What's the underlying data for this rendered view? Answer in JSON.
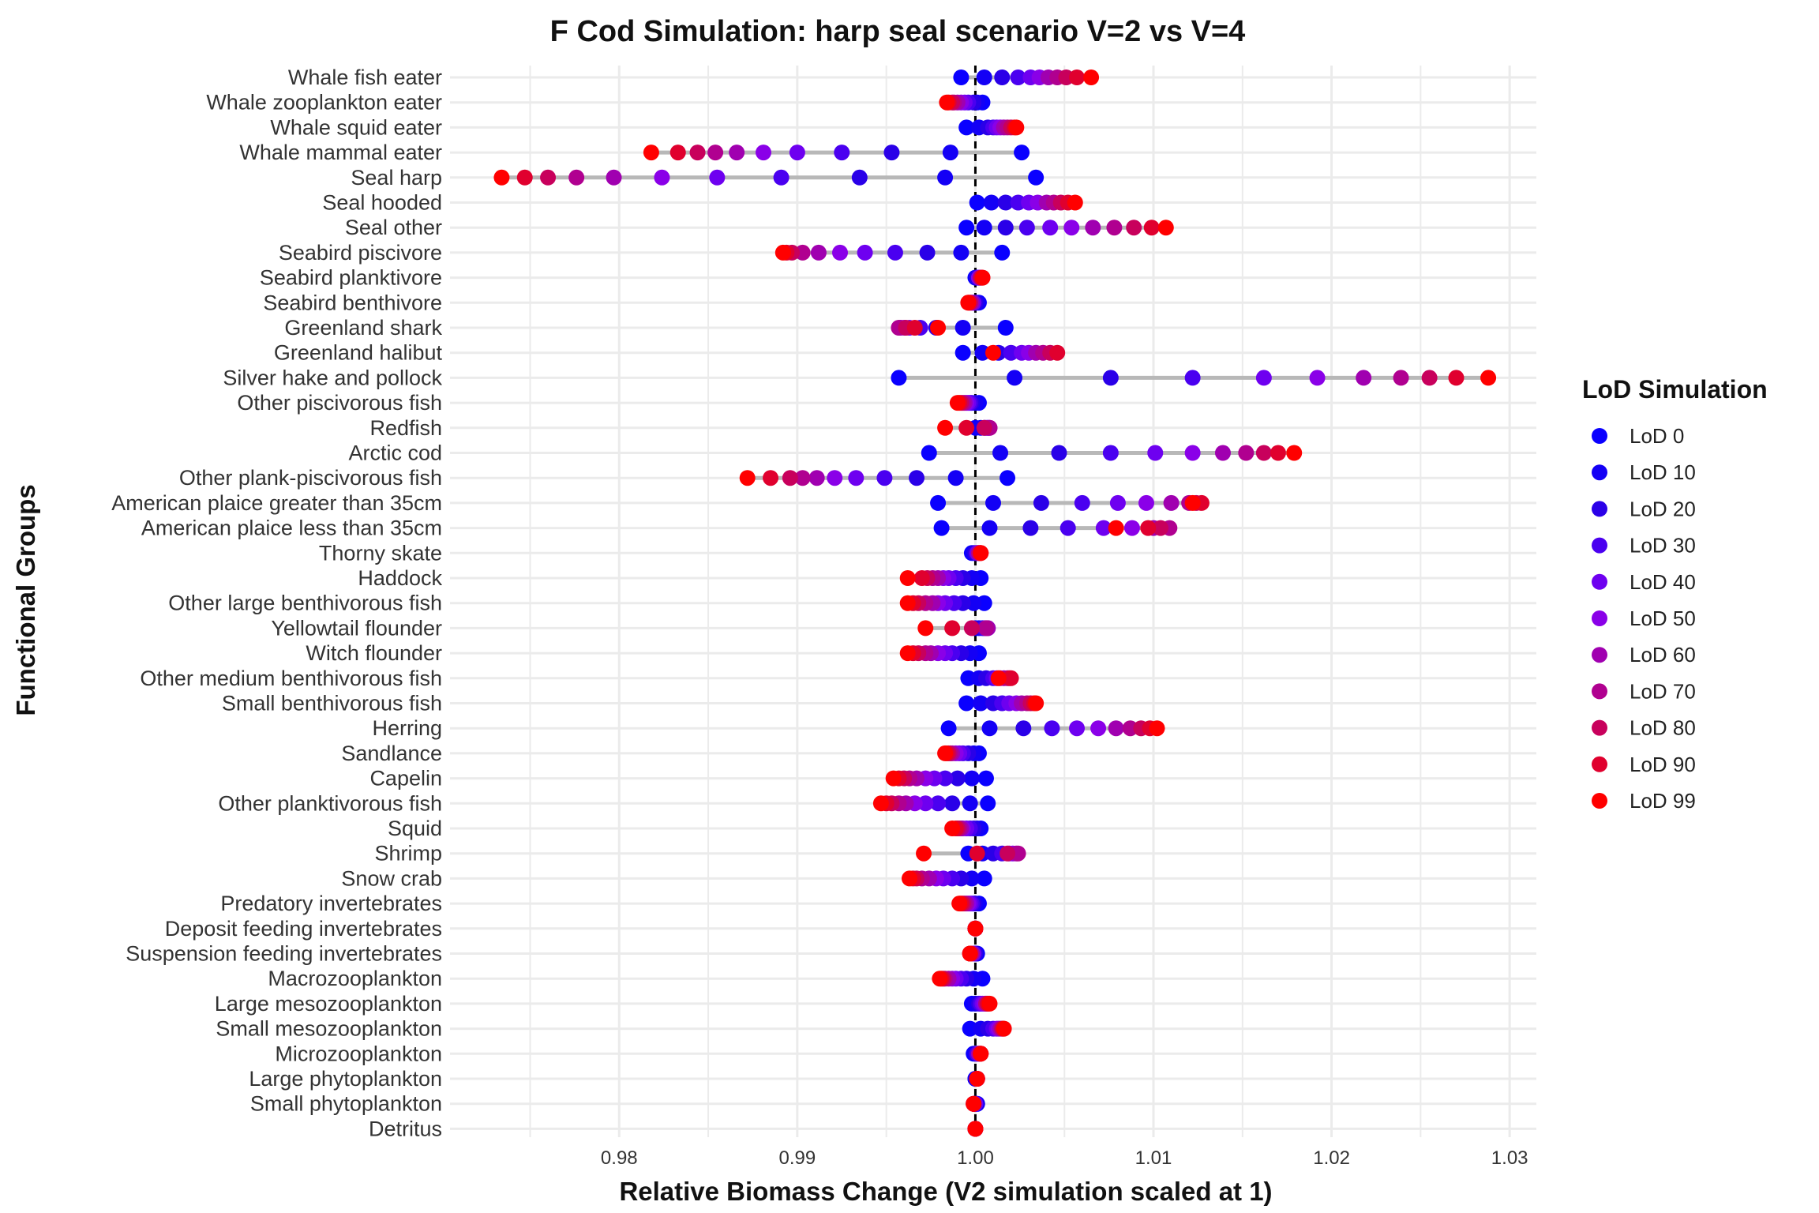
{
  "chart_data": {
    "type": "scatter",
    "title": "F Cod Simulation: harp seal scenario V=2 vs V=4",
    "xlabel": "Relative Biomass Change (V2 simulation scaled at 1)",
    "ylabel": "Functional Groups",
    "xlim": [
      0.9705,
      1.0315
    ],
    "x_ticks": [
      0.98,
      0.99,
      1.0,
      1.01,
      1.02,
      1.03
    ],
    "x_tick_labels": [
      "0.98",
      "0.99",
      "1.00",
      "1.01",
      "1.02",
      "1.03"
    ],
    "reference_line": 1.0,
    "grid": true,
    "legend_position": "right",
    "legend_title": "LoD Simulation",
    "series_names": [
      "LoD 0",
      "LoD 10",
      "LoD 20",
      "LoD 30",
      "LoD 40",
      "LoD 50",
      "LoD 60",
      "LoD 70",
      "LoD 80",
      "LoD 90",
      "LoD 99"
    ],
    "series_colors": [
      "#0a00ff",
      "#1400f5",
      "#2a00e8",
      "#4a00f0",
      "#6e00f0",
      "#8a00e8",
      "#a000b0",
      "#b00090",
      "#c8005c",
      "#e0002e",
      "#ff0000"
    ],
    "groups": [
      {
        "name": "Whale fish eater",
        "values": [
          0.9992,
          1.0005,
          1.0015,
          1.0024,
          1.0031,
          1.0036,
          1.0041,
          1.0046,
          1.0051,
          1.0057,
          1.0065
        ]
      },
      {
        "name": "Whale zooplankton eater",
        "values": [
          1.0004,
          1.0001,
          0.9999,
          0.9996,
          0.9994,
          0.9992,
          0.999,
          0.9988,
          0.9987,
          0.9985,
          0.9984
        ]
      },
      {
        "name": "Whale squid eater",
        "values": [
          0.9995,
          1.0002,
          1.0007,
          1.001,
          1.0012,
          1.0014,
          1.0016,
          1.0018,
          1.002,
          1.0022,
          1.0023
        ]
      },
      {
        "name": "Whale mammal eater",
        "values": [
          1.0026,
          0.9986,
          0.9953,
          0.9925,
          0.99,
          0.9881,
          0.9866,
          0.9854,
          0.9844,
          0.9833,
          0.9818
        ]
      },
      {
        "name": "Seal harp",
        "values": [
          1.0034,
          0.9983,
          0.9935,
          0.9891,
          0.9855,
          0.9824,
          0.9797,
          0.9776,
          0.976,
          0.9747,
          0.9734
        ]
      },
      {
        "name": "Seal hooded",
        "values": [
          1.0001,
          1.0009,
          1.0017,
          1.0024,
          1.003,
          1.0035,
          1.004,
          1.0044,
          1.0048,
          1.0052,
          1.0056
        ]
      },
      {
        "name": "Seal other",
        "values": [
          0.9995,
          1.0005,
          1.0017,
          1.0029,
          1.0042,
          1.0054,
          1.0066,
          1.0078,
          1.0089,
          1.0099,
          1.0107
        ]
      },
      {
        "name": "Seabird piscivore",
        "values": [
          1.0015,
          0.9992,
          0.9973,
          0.9955,
          0.9938,
          0.9924,
          0.9912,
          0.9903,
          0.9897,
          0.9894,
          0.9892
        ]
      },
      {
        "name": "Seabird planktivore",
        "values": [
          1.0,
          1.0001,
          1.0001,
          1.0002,
          1.0002,
          1.0002,
          1.0003,
          1.0003,
          1.0003,
          1.0004,
          1.0004
        ]
      },
      {
        "name": "Seabird benthivore",
        "values": [
          1.0002,
          1.0001,
          1.0,
          0.9999,
          0.9999,
          0.9998,
          0.9998,
          0.9997,
          0.9997,
          0.9996,
          0.9996
        ]
      },
      {
        "name": "Greenland shark",
        "values": [
          1.0017,
          0.9993,
          0.9978,
          0.9969,
          0.9963,
          0.996,
          0.9958,
          0.9957,
          0.9961,
          0.9966,
          0.9979
        ]
      },
      {
        "name": "Greenland halibut",
        "values": [
          0.9993,
          1.0004,
          1.0013,
          1.002,
          1.0026,
          1.003,
          1.0034,
          1.0038,
          1.0042,
          1.0046,
          1.001
        ]
      },
      {
        "name": "Silver hake and pollock",
        "values": [
          0.9957,
          1.0022,
          1.0076,
          1.0122,
          1.0162,
          1.0192,
          1.0218,
          1.0239,
          1.0255,
          1.027,
          1.0288
        ]
      },
      {
        "name": "Other piscivorous fish",
        "values": [
          1.0002,
          1.0,
          0.9998,
          0.9997,
          0.9996,
          0.9995,
          0.9994,
          0.9993,
          0.9992,
          0.9991,
          0.999
        ]
      },
      {
        "name": "Redfish",
        "values": [
          1.0,
          1.0003,
          1.0005,
          1.0006,
          1.0007,
          1.0007,
          1.0008,
          1.0008,
          1.0005,
          0.9995,
          0.9983
        ]
      },
      {
        "name": "Arctic cod",
        "values": [
          0.9974,
          1.0014,
          1.0047,
          1.0076,
          1.0101,
          1.0122,
          1.0139,
          1.0152,
          1.0162,
          1.017,
          1.0179
        ]
      },
      {
        "name": "Other plank-piscivorous fish",
        "values": [
          1.0018,
          0.9989,
          0.9967,
          0.9949,
          0.9933,
          0.9921,
          0.9911,
          0.9903,
          0.9896,
          0.9885,
          0.9872
        ]
      },
      {
        "name": "American plaice greater than 35cm",
        "values": [
          0.9979,
          1.001,
          1.0037,
          1.006,
          1.008,
          1.0096,
          1.011,
          1.012,
          1.0124,
          1.0127,
          1.0122
        ]
      },
      {
        "name": "American plaice less than 35cm",
        "values": [
          0.9981,
          1.0008,
          1.0031,
          1.0052,
          1.0072,
          1.0088,
          1.01,
          1.0109,
          1.0104,
          1.0097,
          1.0079
        ]
      },
      {
        "name": "Thorny skate",
        "values": [
          0.9998,
          0.9999,
          1.0,
          1.0001,
          1.0001,
          1.0002,
          1.0002,
          1.0002,
          1.0003,
          1.0003,
          1.0003
        ]
      },
      {
        "name": "Haddock",
        "values": [
          1.0003,
          0.9998,
          0.9993,
          0.9989,
          0.9985,
          0.9982,
          0.9979,
          0.9976,
          0.9973,
          0.997,
          0.9962
        ]
      },
      {
        "name": "Other large benthivorous fish",
        "values": [
          1.0005,
          0.9999,
          0.9993,
          0.9988,
          0.9983,
          0.9979,
          0.9976,
          0.9972,
          0.9968,
          0.9965,
          0.9962
        ]
      },
      {
        "name": "Yellowtail flounder",
        "values": [
          1.0,
          1.0002,
          1.0004,
          1.0005,
          1.0006,
          1.0007,
          1.0007,
          1.0006,
          0.9998,
          0.9987,
          0.9972
        ]
      },
      {
        "name": "Witch flounder",
        "values": [
          1.0002,
          0.9997,
          0.9992,
          0.9987,
          0.9983,
          0.9979,
          0.9975,
          0.9972,
          0.9968,
          0.9965,
          0.9962
        ]
      },
      {
        "name": "Other medium benthivorous fish",
        "values": [
          0.9996,
          1.0002,
          1.0006,
          1.001,
          1.0012,
          1.0014,
          1.0016,
          1.0018,
          1.0019,
          1.002,
          1.0013
        ]
      },
      {
        "name": "Small benthivorous fish",
        "values": [
          0.9995,
          1.0003,
          1.001,
          1.0015,
          1.0019,
          1.0023,
          1.0026,
          1.0029,
          1.0031,
          1.0033,
          1.0034
        ]
      },
      {
        "name": "Herring",
        "values": [
          0.9985,
          1.0008,
          1.0027,
          1.0043,
          1.0057,
          1.0069,
          1.0079,
          1.0087,
          1.0093,
          1.0098,
          1.0102
        ]
      },
      {
        "name": "Sandlance",
        "values": [
          1.0002,
          0.9999,
          0.9996,
          0.9993,
          0.9991,
          0.9989,
          0.9987,
          0.9986,
          0.9985,
          0.9984,
          0.9983
        ]
      },
      {
        "name": "Capelin",
        "values": [
          1.0006,
          0.9998,
          0.999,
          0.9983,
          0.9977,
          0.9972,
          0.9967,
          0.9963,
          0.996,
          0.9957,
          0.9954
        ]
      },
      {
        "name": "Other planktivorous fish",
        "values": [
          1.0007,
          0.9997,
          0.9987,
          0.9979,
          0.9972,
          0.9966,
          0.9961,
          0.9957,
          0.9953,
          0.995,
          0.9947
        ]
      },
      {
        "name": "Squid",
        "values": [
          1.0003,
          1.0001,
          0.9999,
          0.9997,
          0.9995,
          0.9993,
          0.9992,
          0.9991,
          0.999,
          0.9989,
          0.9987
        ]
      },
      {
        "name": "Shrimp",
        "values": [
          0.9996,
          1.0004,
          1.001,
          1.0015,
          1.0019,
          1.0021,
          1.0023,
          1.0024,
          1.0018,
          1.0001,
          0.9971
        ]
      },
      {
        "name": "Snow crab",
        "values": [
          1.0005,
          0.9998,
          0.9992,
          0.9987,
          0.9982,
          0.9978,
          0.9974,
          0.997,
          0.9967,
          0.9965,
          0.9963
        ]
      },
      {
        "name": "Predatory invertebrates",
        "values": [
          1.0002,
          1.0,
          0.9999,
          0.9998,
          0.9997,
          0.9996,
          0.9995,
          0.9994,
          0.9993,
          0.9992,
          0.9991
        ]
      },
      {
        "name": "Deposit feeding invertebrates",
        "values": [
          1.0,
          1.0,
          1.0,
          1.0,
          1.0,
          1.0,
          1.0,
          1.0,
          1.0,
          1.0,
          1.0
        ]
      },
      {
        "name": "Suspension feeding invertebrates",
        "values": [
          1.0001,
          1.0,
          1.0,
          0.9999,
          0.9999,
          0.9998,
          0.9998,
          0.9998,
          0.9997,
          0.9997,
          0.9997
        ]
      },
      {
        "name": "Macrozooplankton",
        "values": [
          1.0004,
          0.9999,
          0.9995,
          0.9992,
          0.9989,
          0.9987,
          0.9985,
          0.9983,
          0.9982,
          0.9981,
          0.998
        ]
      },
      {
        "name": "Large mesozooplankton",
        "values": [
          0.9998,
          1.0,
          1.0002,
          1.0003,
          1.0004,
          1.0005,
          1.0006,
          1.0006,
          1.0007,
          1.0007,
          1.0008
        ]
      },
      {
        "name": "Small mesozooplankton",
        "values": [
          0.9997,
          1.0003,
          1.0007,
          1.001,
          1.0012,
          1.0013,
          1.0014,
          1.0015,
          1.0015,
          1.0016,
          1.0016
        ]
      },
      {
        "name": "Microzooplankton",
        "values": [
          0.9999,
          1.0,
          1.0001,
          1.0001,
          1.0002,
          1.0002,
          1.0002,
          1.0003,
          1.0003,
          1.0003,
          1.0003
        ]
      },
      {
        "name": "Large phytoplankton",
        "values": [
          1.0,
          1.0,
          1.0001,
          1.0001,
          1.0001,
          1.0001,
          1.0001,
          1.0001,
          1.0001,
          1.0001,
          1.0001
        ]
      },
      {
        "name": "Small phytoplankton",
        "values": [
          1.0001,
          1.0001,
          1.0,
          1.0,
          1.0,
          0.9999,
          0.9999,
          0.9999,
          0.9999,
          0.9999,
          0.9999
        ]
      },
      {
        "name": "Detritus",
        "values": [
          1.0,
          1.0,
          1.0,
          1.0,
          1.0,
          1.0,
          1.0,
          1.0,
          1.0,
          1.0,
          1.0
        ]
      }
    ]
  }
}
